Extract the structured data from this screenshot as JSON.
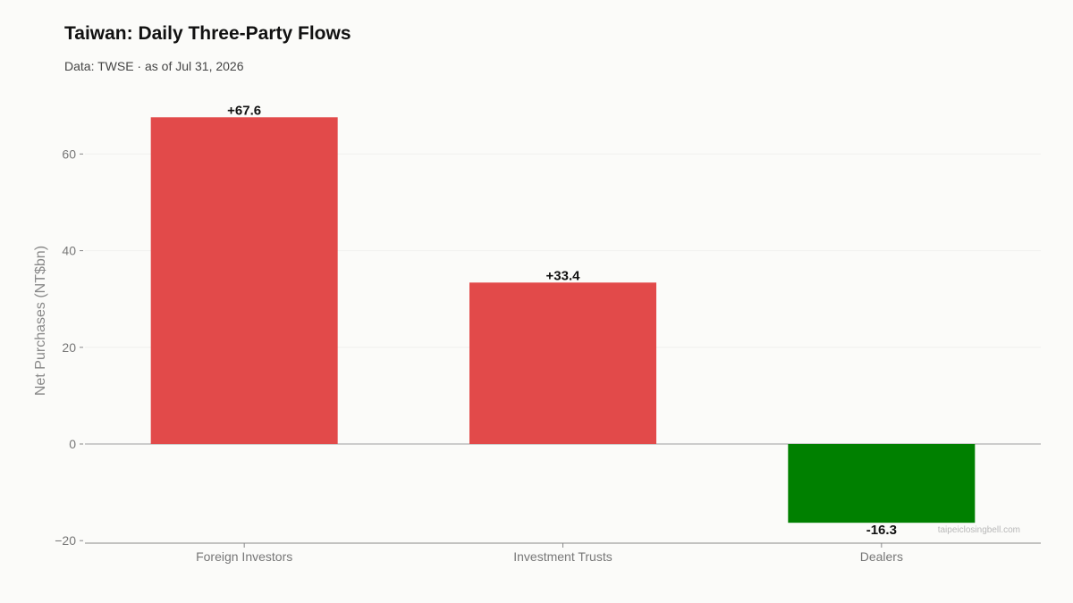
{
  "header": {
    "title": "Taiwan: Daily Three-Party Flows",
    "subtitle": "Data: TWSE · as of Jul 31, 2026"
  },
  "watermark": "taipeiclosingbell.com",
  "colors": {
    "positive": "#e24a4a",
    "negative": "#008000",
    "background": "#fbfbf9"
  },
  "chart_data": {
    "type": "bar",
    "title": "Taiwan: Daily Three-Party Flows",
    "subtitle": "Data: TWSE · as of Jul 31, 2026",
    "xlabel": "",
    "ylabel": "Net Purchases (NT$bn)",
    "categories": [
      "Foreign Investors",
      "Investment Trusts",
      "Dealers"
    ],
    "values": [
      67.6,
      33.4,
      -16.3
    ],
    "value_labels": [
      "+67.6",
      "+33.4",
      "-16.3"
    ],
    "ylim": [
      -20,
      70
    ],
    "yticks": [
      -20,
      0,
      20,
      40,
      60
    ],
    "ytick_labels": [
      "−20",
      "0",
      "20",
      "40",
      "60"
    ],
    "grid": true
  }
}
